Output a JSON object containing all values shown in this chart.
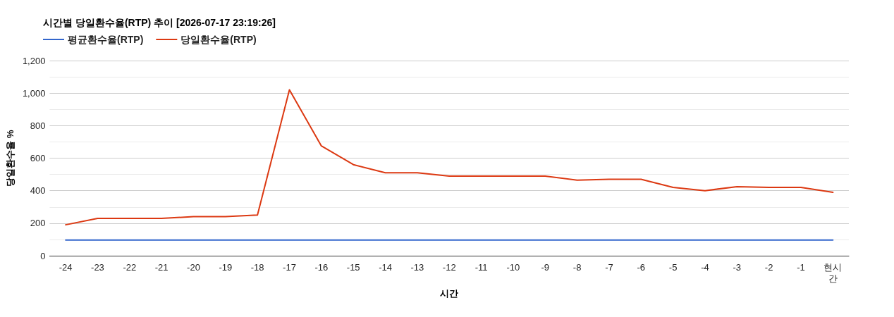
{
  "chart_data": {
    "type": "line",
    "title": "시간별 당일환수율(RTP) 추이 [2026-07-17 23:19:26]",
    "xlabel": "시간",
    "ylabel": "당일환수율 %",
    "categories": [
      "-24",
      "-23",
      "-22",
      "-21",
      "-20",
      "-19",
      "-18",
      "-17",
      "-16",
      "-15",
      "-14",
      "-13",
      "-12",
      "-11",
      "-10",
      "-9",
      "-8",
      "-7",
      "-6",
      "-5",
      "-4",
      "-3",
      "-2",
      "-1",
      "현시간"
    ],
    "series": [
      {
        "name": "평균환수율(RTP)",
        "color": "#3366cc",
        "values": [
          96,
          96,
          96,
          96,
          96,
          96,
          96,
          96,
          96,
          96,
          96,
          96,
          96,
          96,
          96,
          96,
          96,
          96,
          96,
          96,
          96,
          96,
          96,
          96,
          96
        ]
      },
      {
        "name": "당일환수율(RTP)",
        "color": "#dc3912",
        "values": [
          190,
          230,
          230,
          230,
          240,
          240,
          250,
          1020,
          675,
          560,
          510,
          510,
          490,
          490,
          490,
          490,
          465,
          470,
          470,
          420,
          400,
          425,
          420,
          420,
          390
        ]
      }
    ],
    "ylim": [
      0,
      1200
    ],
    "yticks": [
      0,
      {
        "value": 100,
        "label": null
      },
      200,
      {
        "value": 300,
        "label": null
      },
      400,
      {
        "value": 500,
        "label": null
      },
      600,
      {
        "value": 700,
        "label": null
      },
      800,
      {
        "value": 900,
        "label": null
      },
      {
        "value": 1000,
        "label": "1,000"
      },
      {
        "value": 1100,
        "label": null
      },
      {
        "value": 1200,
        "label": "1,200"
      }
    ],
    "grid": "y",
    "legend": "top left",
    "marker": "none",
    "line_style": "solid"
  }
}
